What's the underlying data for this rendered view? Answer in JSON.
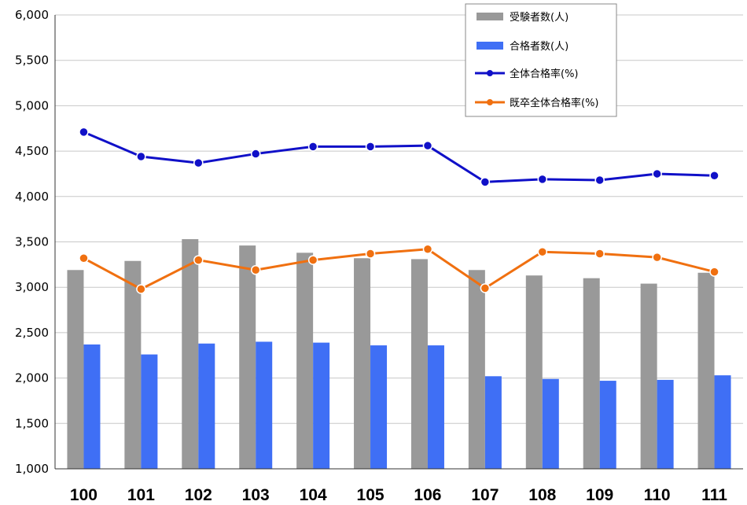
{
  "chart_data": {
    "type": "bar",
    "title": "",
    "xlabel": "",
    "ylabel": "",
    "categories": [
      "100",
      "101",
      "102",
      "103",
      "104",
      "105",
      "106",
      "107",
      "108",
      "109",
      "110",
      "111"
    ],
    "ylim": [
      1000,
      6000
    ],
    "yticks": [
      1000,
      1500,
      2000,
      2500,
      3000,
      3500,
      4000,
      4500,
      5000,
      5500,
      6000
    ],
    "ytick_labels": [
      "1,000",
      "1,500",
      "2,000",
      "2,500",
      "3,000",
      "3,500",
      "4,000",
      "4,500",
      "5,000",
      "5,500",
      "6,000"
    ],
    "grid": true,
    "legend_position": "top-right",
    "series": [
      {
        "name": "受験者数(人)",
        "kind": "bar",
        "color": "#999999",
        "values": [
          3190,
          3290,
          3530,
          3460,
          3380,
          3320,
          3310,
          3190,
          3130,
          3100,
          3040,
          3160
        ]
      },
      {
        "name": "合格者数(人)",
        "kind": "bar",
        "color": "#3f6ff5",
        "values": [
          2370,
          2260,
          2380,
          2400,
          2390,
          2360,
          2360,
          2020,
          1990,
          1970,
          1980,
          2030
        ]
      },
      {
        "name": "全体合格率(%)",
        "kind": "line",
        "color": "#1010c8",
        "values": [
          4710,
          4440,
          4370,
          4470,
          4550,
          4550,
          4560,
          4160,
          4190,
          4180,
          4250,
          4230
        ]
      },
      {
        "name": "既卒全体合格率(%)",
        "kind": "line",
        "color": "#f07010",
        "values": [
          3320,
          2980,
          3300,
          3190,
          3300,
          3370,
          3420,
          2990,
          3390,
          3370,
          3330,
          3170
        ]
      }
    ]
  }
}
